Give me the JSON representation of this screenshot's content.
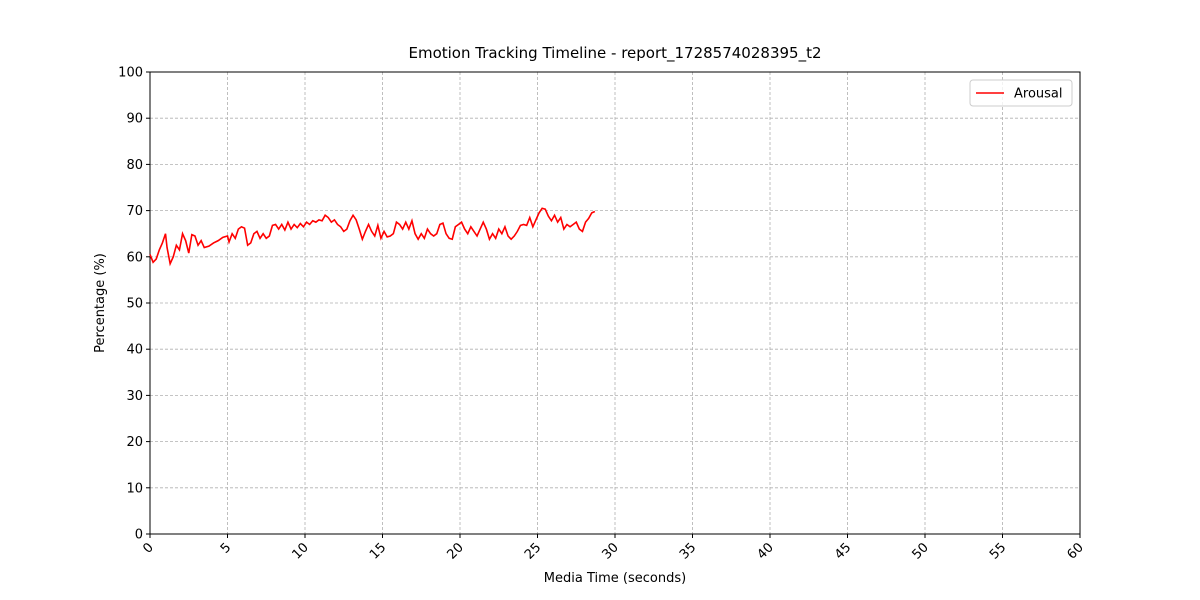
{
  "chart_data": {
    "type": "line",
    "title": "Emotion Tracking Timeline - report_1728574028395_t2",
    "xlabel": "Media Time (seconds)",
    "ylabel": "Percentage (%)",
    "xlim": [
      0,
      60
    ],
    "ylim": [
      0,
      100
    ],
    "xticks": [
      0,
      5,
      10,
      15,
      20,
      25,
      30,
      35,
      40,
      45,
      50,
      55,
      60
    ],
    "yticks": [
      0,
      10,
      20,
      30,
      40,
      50,
      60,
      70,
      80,
      90,
      100
    ],
    "grid": true,
    "legend": "upper right",
    "x": [
      0,
      0.2,
      0.4,
      0.6,
      0.8,
      1.0,
      1.1,
      1.3,
      1.5,
      1.7,
      1.9,
      2.1,
      2.3,
      2.5,
      2.7,
      2.9,
      3.1,
      3.3,
      3.5,
      3.8,
      4.1,
      4.4,
      4.7,
      5.0,
      5.1,
      5.3,
      5.5,
      5.7,
      5.9,
      6.1,
      6.3,
      6.5,
      6.7,
      6.9,
      7.1,
      7.3,
      7.5,
      7.7,
      7.9,
      8.1,
      8.3,
      8.5,
      8.7,
      8.9,
      9.1,
      9.3,
      9.5,
      9.7,
      9.9,
      10.1,
      10.3,
      10.5,
      10.7,
      10.9,
      11.1,
      11.3,
      11.5,
      11.7,
      11.9,
      12.1,
      12.3,
      12.5,
      12.7,
      12.9,
      13.1,
      13.3,
      13.5,
      13.7,
      13.9,
      14.1,
      14.3,
      14.5,
      14.7,
      14.9,
      15.1,
      15.3,
      15.5,
      15.7,
      15.9,
      16.1,
      16.3,
      16.5,
      16.7,
      16.9,
      17.1,
      17.3,
      17.5,
      17.7,
      17.9,
      18.1,
      18.3,
      18.5,
      18.7,
      18.9,
      19.1,
      19.3,
      19.5,
      19.7,
      19.9,
      20.1,
      20.3,
      20.5,
      20.7,
      20.9,
      21.1,
      21.3,
      21.5,
      21.7,
      21.9,
      22.1,
      22.3,
      22.5,
      22.7,
      22.9,
      23.1,
      23.3,
      23.5,
      23.7,
      23.9,
      24.1,
      24.3,
      24.5,
      24.7,
      24.9,
      25.1,
      25.3,
      25.5,
      25.7,
      25.9,
      26.1,
      26.3,
      26.5,
      26.7,
      26.9,
      27.1,
      27.3,
      27.5,
      27.7,
      27.9,
      28.1,
      28.3,
      28.5,
      28.7
    ],
    "series": [
      {
        "name": "Arousal",
        "color": "#ff0000",
        "values": [
          60.5,
          58.8,
          59.5,
          61.5,
          63,
          65,
          62,
          58.5,
          60,
          62.5,
          61.5,
          65,
          63.5,
          60.8,
          64.8,
          64.5,
          62.5,
          63.5,
          62,
          62.3,
          63,
          63.5,
          64.2,
          64.5,
          63.2,
          65,
          64,
          66,
          66.5,
          66.2,
          62.5,
          63,
          65,
          65.5,
          64,
          65,
          64,
          64.5,
          66.8,
          67,
          66,
          67,
          65.8,
          67.5,
          66,
          67,
          66.3,
          67.2,
          66.5,
          67.5,
          67,
          67.8,
          67.5,
          68,
          67.8,
          69,
          68.5,
          67.5,
          68,
          67,
          66.5,
          65.5,
          66,
          67.8,
          69,
          68,
          66,
          63.8,
          65.5,
          67,
          65.5,
          64.5,
          66.8,
          64,
          65.5,
          64.3,
          64.5,
          65,
          67.5,
          67,
          66,
          67.5,
          66,
          67.8,
          65,
          63.8,
          65,
          64,
          66,
          65,
          64.5,
          65,
          67,
          67.3,
          65,
          64,
          63.8,
          66.5,
          67,
          67.5,
          66,
          65,
          66.5,
          65.5,
          64.5,
          66,
          67.5,
          66,
          63.8,
          65,
          64,
          66,
          65,
          66.5,
          64.5,
          63.8,
          64.5,
          65.5,
          66.8,
          67,
          66.8,
          68.5,
          66.5,
          68,
          69.5,
          70.5,
          70.3,
          68.8,
          67.8,
          69,
          67.5,
          68.5,
          66,
          67,
          66.5,
          67,
          67.5,
          66,
          65.5,
          67.5,
          68.3,
          69.5,
          69.8
        ]
      }
    ]
  }
}
